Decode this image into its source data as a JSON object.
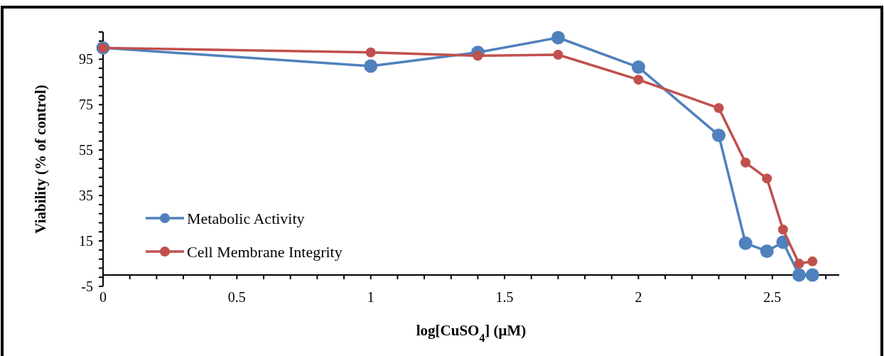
{
  "chart_data": {
    "type": "line",
    "xlabel": "log[CuSO$_{4}$] (μM)",
    "ylabel": "Viability (% of control)",
    "xlim": [
      0,
      2.75
    ],
    "ylim": [
      -5,
      107
    ],
    "xticks": [
      0,
      {
        "value": 0.1,
        "label": null
      },
      {
        "value": 0.2,
        "label": null
      },
      {
        "value": 0.3,
        "label": null
      },
      {
        "value": 0.4,
        "label": null
      },
      0.5,
      {
        "value": 0.6,
        "label": null
      },
      {
        "value": 0.7,
        "label": null
      },
      {
        "value": 0.8,
        "label": null
      },
      {
        "value": 0.9,
        "label": null
      },
      1,
      {
        "value": 1.1,
        "label": null
      },
      {
        "value": 1.2,
        "label": null
      },
      {
        "value": 1.3,
        "label": null
      },
      {
        "value": 1.4,
        "label": null
      },
      1.5,
      {
        "value": 1.6,
        "label": null
      },
      {
        "value": 1.7,
        "label": null
      },
      {
        "value": 1.8,
        "label": null
      },
      {
        "value": 1.9,
        "label": null
      },
      2,
      {
        "value": 2.1,
        "label": null
      },
      {
        "value": 2.2,
        "label": null
      },
      {
        "value": 2.3,
        "label": null
      },
      {
        "value": 2.4,
        "label": null
      },
      2.5,
      {
        "value": 2.6,
        "label": null
      },
      {
        "value": 2.7,
        "label": null
      }
    ],
    "yticks": [
      -5,
      {
        "value": -1,
        "label": null
      },
      {
        "value": 3,
        "label": null
      },
      {
        "value": 7,
        "label": null
      },
      {
        "value": 11,
        "label": null
      },
      15,
      {
        "value": 19,
        "label": null
      },
      {
        "value": 23,
        "label": null
      },
      {
        "value": 27,
        "label": null
      },
      {
        "value": 31,
        "label": null
      },
      35,
      {
        "value": 39,
        "label": null
      },
      {
        "value": 43,
        "label": null
      },
      {
        "value": 47,
        "label": null
      },
      {
        "value": 51,
        "label": null
      },
      55,
      {
        "value": 59,
        "label": null
      },
      {
        "value": 63,
        "label": null
      },
      {
        "value": 67,
        "label": null
      },
      {
        "value": 71,
        "label": null
      },
      75,
      {
        "value": 79,
        "label": null
      },
      {
        "value": 83,
        "label": null
      },
      {
        "value": 87,
        "label": null
      },
      {
        "value": 91,
        "label": null
      },
      95,
      {
        "value": 99,
        "label": null
      },
      {
        "value": 103,
        "label": null
      },
      {
        "value": 107,
        "label": null
      }
    ],
    "x": [
      0,
      1,
      1.4,
      1.7,
      2,
      2.3,
      2.4,
      2.48,
      2.54,
      2.6,
      2.65
    ],
    "series": [
      {
        "name": "Metabolic Activity",
        "color": "#4f81bd",
        "values": [
          100,
          92,
          98,
          104.5,
          91.5,
          61.5,
          14,
          10.5,
          14.5,
          0,
          0
        ]
      },
      {
        "name": "Cell Membrane Integrity",
        "color": "#c0504d",
        "values": [
          100,
          98,
          96.5,
          97,
          86,
          73.5,
          49.5,
          42.5,
          20,
          5,
          6
        ]
      }
    ],
    "marker": "circle",
    "legend": "bottom left",
    "grid": false
  }
}
